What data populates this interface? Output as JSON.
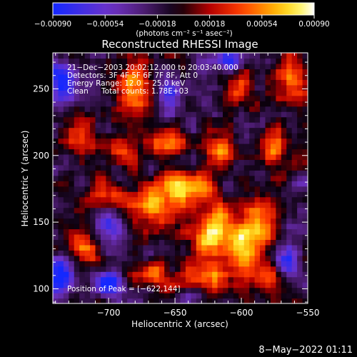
{
  "chart_data": {
    "type": "heatmap",
    "title": "Reconstructed RHESSI Image",
    "xlabel": "Heliocentric X (arcsec)",
    "ylabel": "Heliocentric Y (arcsec)",
    "xlim": [
      -742,
      -550
    ],
    "ylim": [
      89,
      277
    ],
    "x_ticks": [
      -700,
      -650,
      -600,
      -550
    ],
    "y_ticks": [
      100,
      150,
      200,
      250
    ],
    "x_tick_labels": [
      "−700",
      "−650",
      "−600",
      "−550"
    ],
    "y_tick_labels": [
      "100",
      "150",
      "200",
      "250"
    ],
    "colorbar": {
      "min": -0.0009,
      "max": 0.0009,
      "ticks": [
        -0.0009,
        -0.00054,
        -0.00018,
        0.00018,
        0.00054,
        0.0009
      ],
      "tick_labels": [
        "−0.00090",
        "−0.00054",
        "−0.00018",
        "0.00018",
        "0.00054",
        "0.00090"
      ],
      "units_label": "(photons cm⁻² s⁻¹ asec⁻²)"
    },
    "annotations": {
      "time_range": "21−Dec−2003 20:02:12.000 to 20:03:40.000",
      "detectors": "Detectors: 3F 4F 5F 6F 7F 8F, Att 0",
      "energy_range": "Energy Range: 12.0 − 25.0 keV",
      "method": "Clean",
      "total_counts": "Total counts: 1.78E+03",
      "peak": "Position of Peak = [−622,144]"
    },
    "peak": {
      "x": -622,
      "y": 144
    },
    "blobs": [
      {
        "x": -622,
        "y": 144,
        "sx": 9,
        "sy": 13,
        "a": 1.0
      },
      {
        "x": -665,
        "y": 162,
        "sx": 14,
        "sy": 9,
        "a": 0.85
      },
      {
        "x": -640,
        "y": 178,
        "sx": 14,
        "sy": 8,
        "a": 0.8
      },
      {
        "x": -600,
        "y": 135,
        "sx": 9,
        "sy": 16,
        "a": 0.75
      },
      {
        "x": -585,
        "y": 150,
        "sx": 7,
        "sy": 12,
        "a": 0.65
      },
      {
        "x": -615,
        "y": 205,
        "sx": 8,
        "sy": 9,
        "a": 0.75
      },
      {
        "x": -680,
        "y": 250,
        "sx": 10,
        "sy": 14,
        "a": 0.7
      },
      {
        "x": -655,
        "y": 210,
        "sx": 10,
        "sy": 7,
        "a": 0.65
      },
      {
        "x": -700,
        "y": 170,
        "sx": 9,
        "sy": 8,
        "a": 0.6
      },
      {
        "x": -718,
        "y": 130,
        "sx": 9,
        "sy": 10,
        "a": 0.55
      },
      {
        "x": -630,
        "y": 110,
        "sx": 12,
        "sy": 10,
        "a": 0.7
      },
      {
        "x": -575,
        "y": 205,
        "sx": 7,
        "sy": 12,
        "a": 0.6
      },
      {
        "x": -560,
        "y": 255,
        "sx": 9,
        "sy": 12,
        "a": 0.55
      },
      {
        "x": -603,
        "y": 255,
        "sx": 8,
        "sy": 10,
        "a": 0.5
      },
      {
        "x": -725,
        "y": 215,
        "sx": 8,
        "sy": 9,
        "a": 0.5
      },
      {
        "x": -665,
        "y": 110,
        "sx": 10,
        "sy": 8,
        "a": 0.55
      },
      {
        "x": -580,
        "y": 110,
        "sx": 8,
        "sy": 9,
        "a": 0.5
      },
      {
        "x": -690,
        "y": 205,
        "sx": 8,
        "sy": 8,
        "a": 0.45
      }
    ],
    "dark_regions": [
      {
        "x": -735,
        "y": 110,
        "sx": 8,
        "sy": 10,
        "a": 0.9
      },
      {
        "x": -700,
        "y": 105,
        "sx": 7,
        "sy": 7,
        "a": 0.9
      },
      {
        "x": -735,
        "y": 255,
        "sx": 9,
        "sy": 10,
        "a": 0.8
      },
      {
        "x": -610,
        "y": 270,
        "sx": 10,
        "sy": 7,
        "a": 0.7
      },
      {
        "x": -565,
        "y": 120,
        "sx": 6,
        "sy": 8,
        "a": 0.7
      },
      {
        "x": -655,
        "y": 245,
        "sx": 8,
        "sy": 9,
        "a": 0.6
      },
      {
        "x": -700,
        "y": 145,
        "sx": 7,
        "sy": 9,
        "a": 0.6
      },
      {
        "x": -640,
        "y": 95,
        "sx": 8,
        "sy": 5,
        "a": 0.5
      }
    ]
  },
  "footer": {
    "date": "8−May−2022 01:11"
  },
  "colors": {
    "background": "#000000",
    "foreground": "#ffffff"
  }
}
